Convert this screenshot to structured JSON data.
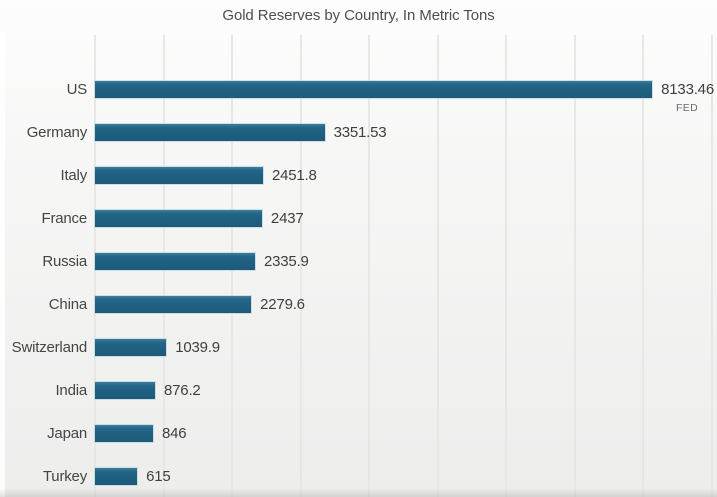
{
  "chart_data": {
    "type": "bar",
    "orientation": "horizontal",
    "title": "Gold Reserves by Country, In Metric Tons",
    "unit": "Metric Tons",
    "categories": [
      "US",
      "Germany",
      "Italy",
      "France",
      "Russia",
      "China",
      "Switzerland",
      "India",
      "Japan",
      "Turkey"
    ],
    "values": [
      8133.46,
      3351.53,
      2451.8,
      2437,
      2335.9,
      2279.6,
      1039.9,
      876.2,
      846,
      615
    ],
    "value_labels": [
      "8133.46",
      "3351.53",
      "2451.8",
      "2437",
      "2335.9",
      "2279.6",
      "1039.9",
      "876.2",
      "846",
      "615"
    ],
    "annotation": {
      "text": "FED",
      "attached_to": "US"
    },
    "xlim": [
      0,
      9000
    ],
    "gridline_interval": 1000,
    "grid": true,
    "legend": "none",
    "bar_color": "#1f5f80",
    "gridline_color": "#e7e7e6",
    "title_color": "#4e4e4e",
    "label_color": "#454545"
  }
}
